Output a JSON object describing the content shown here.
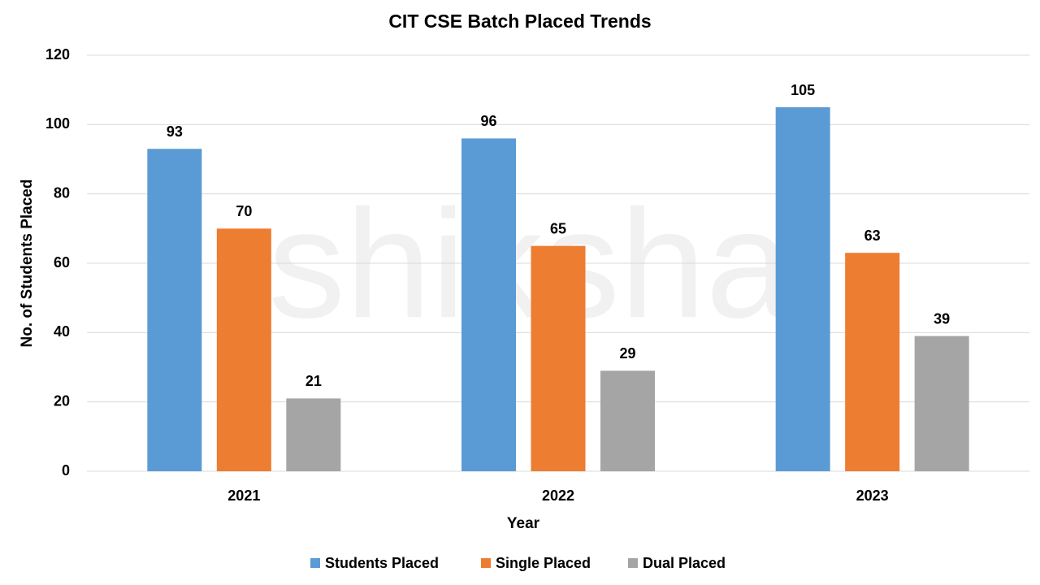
{
  "chart_data": {
    "type": "bar",
    "title": "CIT CSE Batch Placed Trends",
    "watermark": "shiksha",
    "x_label": "Year",
    "y_label": "No. of Students Placed",
    "categories": [
      "2021",
      "2022",
      "2023"
    ],
    "series": [
      {
        "name": "Students Placed",
        "color": "#5b9bd5",
        "values": [
          93,
          96,
          105
        ]
      },
      {
        "name": "Single Placed",
        "color": "#ed7d31",
        "values": [
          70,
          65,
          63
        ]
      },
      {
        "name": "Dual Placed",
        "color": "#a5a5a5",
        "values": [
          21,
          29,
          39
        ]
      }
    ],
    "ylim": [
      0,
      120
    ],
    "yticks": [
      0,
      20,
      40,
      60,
      80,
      100,
      120
    ],
    "grid": true,
    "legend": "bottom"
  }
}
